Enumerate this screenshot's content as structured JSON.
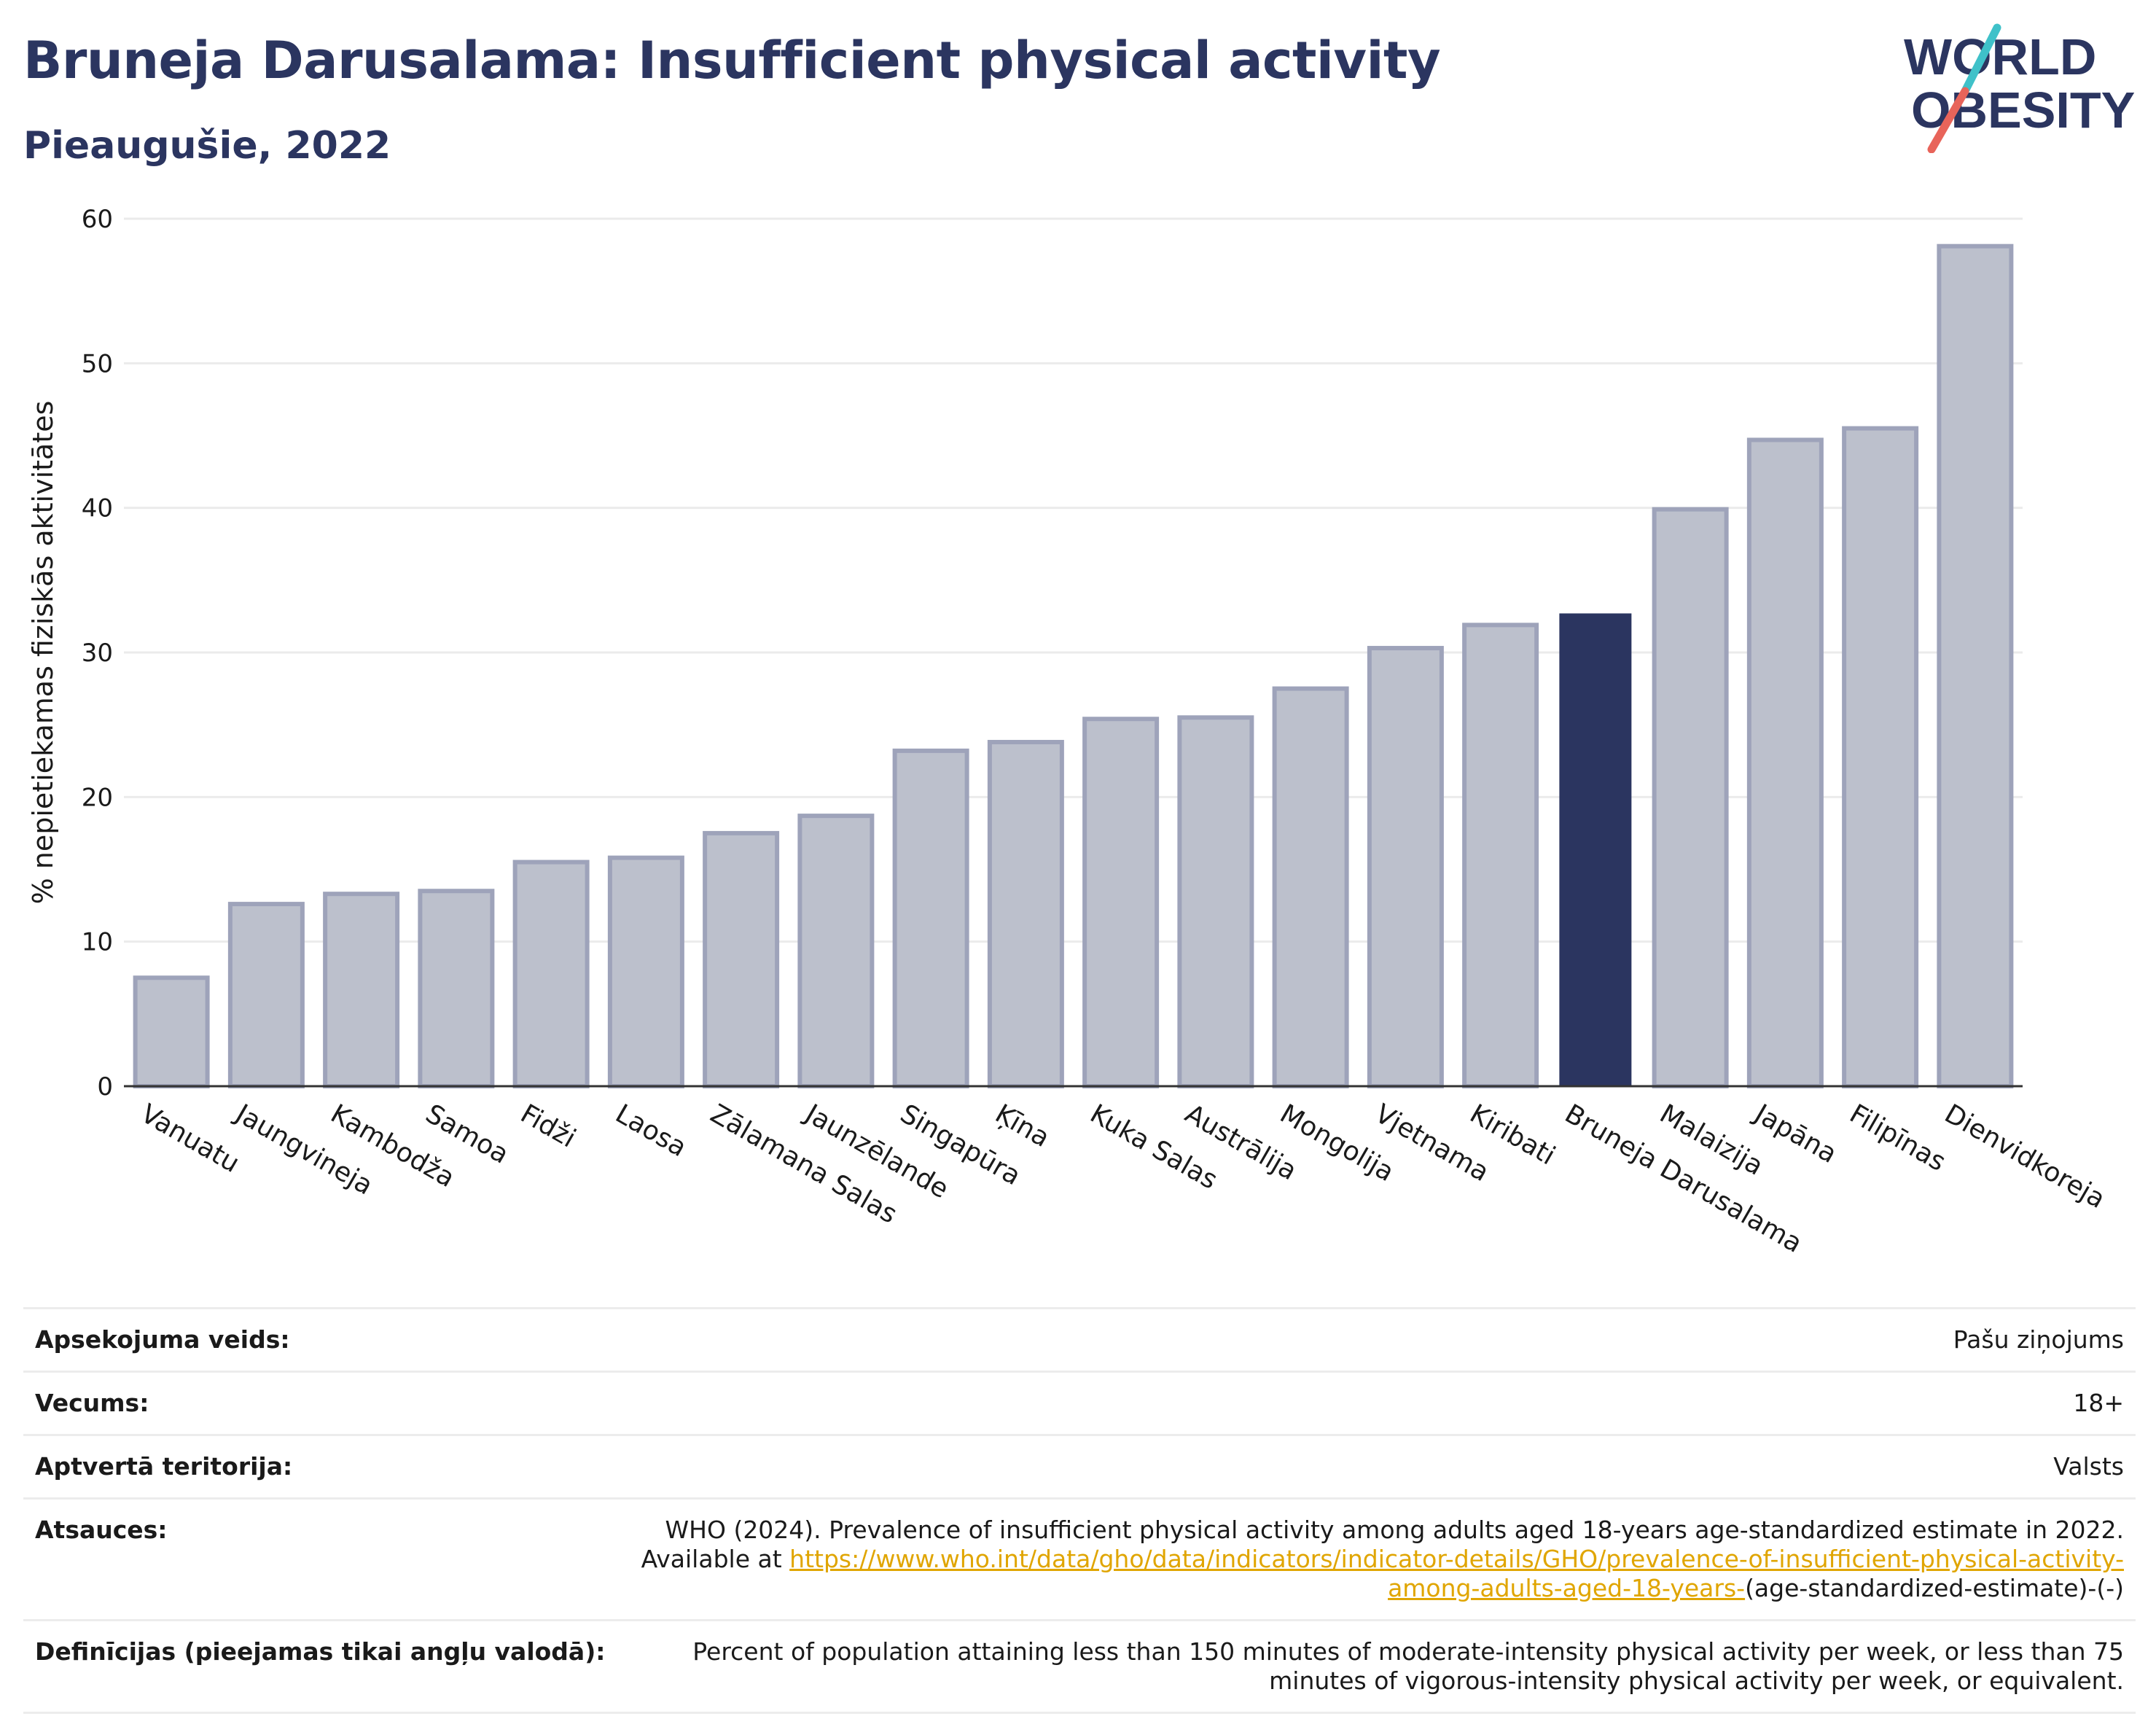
{
  "header": {
    "title": "Bruneja Darusalama: Insufficient physical activity",
    "subtitle": "Pieaugušie, 2022"
  },
  "logo": {
    "line1": "WORLD",
    "line2": "OBESITY",
    "slash_colors": [
      "#3fc1c9",
      "#e8645a"
    ]
  },
  "chart_data": {
    "type": "bar",
    "title": "Bruneja Darusalama: Insufficient physical activity",
    "subtitle": "Pieaugušie, 2022",
    "ylabel": "% nepietiekamas fiziskās aktivitātes",
    "xlabel": "",
    "ylim": [
      0,
      60
    ],
    "yticks": [
      0,
      10,
      20,
      30,
      40,
      50,
      60
    ],
    "grid": true,
    "categories": [
      "Vanuatu",
      "Jaungvineja",
      "Kambodža",
      "Samoa",
      "Fidži",
      "Laosa",
      "Zālamana Salas",
      "Jaunzēlande",
      "Singapūra",
      "Ķīna",
      "Kuka Salas",
      "Austrālija",
      "Mongolija",
      "Vjetnama",
      "Kiribati",
      "Bruneja Darusalama",
      "Malaizija",
      "Japāna",
      "Filipīnas",
      "Dienvidkoreja"
    ],
    "values": [
      7.5,
      12.6,
      13.3,
      13.5,
      15.5,
      15.8,
      17.5,
      18.7,
      23.2,
      23.8,
      25.4,
      25.5,
      27.5,
      30.3,
      31.9,
      32.7,
      39.9,
      44.7,
      45.5,
      58.1
    ],
    "highlight": "Bruneja Darusalama",
    "colors": {
      "default": "#bcc0cc",
      "default_edge": "#9ea3ba",
      "highlight": "#2b3560",
      "grid": "#ebebeb",
      "axis": "#333333"
    }
  },
  "meta": [
    {
      "key": "Apsekojuma veids:",
      "value": "Pašu ziņojums"
    },
    {
      "key": "Vecums:",
      "value": "18+"
    },
    {
      "key": "Aptvertā teritorija:",
      "value": "Valsts"
    },
    {
      "key": "Atsauces:",
      "value_pre": "WHO (2024). Prevalence of insufficient physical activity among adults aged 18-years age-standardized estimate in 2022. Available at",
      "value_link": "https://www.who.int/data/gho/data/indicators/indicator-details/GHO/prevalence-of-insufficient-physical-activity-among-adults-aged-18-years-",
      "value_post": "(age-standardized-estimate)-(-)"
    },
    {
      "key": "Definīcijas (pieejamas tikai angļu valodā):",
      "value": "Percent of population attaining less than 150 minutes of moderate-intensity physical activity per week, or less than 75 minutes of vigorous-intensity physical activity per week, or equivalent."
    }
  ]
}
